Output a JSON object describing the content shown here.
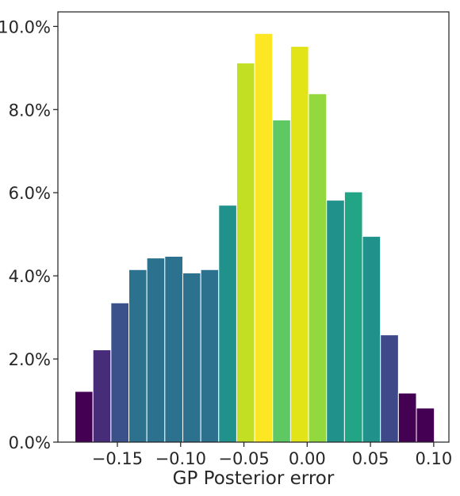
{
  "chart_data": {
    "type": "bar",
    "subtype": "histogram",
    "title": "",
    "xlabel": "GP Posterior error",
    "ylabel": "",
    "bin_width": 0.0142,
    "bin_start": -0.1835,
    "values": [
      1.22,
      2.22,
      3.35,
      4.15,
      4.43,
      4.47,
      4.07,
      4.15,
      5.7,
      9.12,
      9.83,
      7.75,
      9.52,
      8.38,
      5.82,
      6.02,
      4.95,
      2.58,
      1.18,
      0.82
    ],
    "value_unit": "%",
    "colors": [
      "#440154",
      "#472c7a",
      "#3b518b",
      "#2c718e",
      "#2c718e",
      "#2c718e",
      "#2c718e",
      "#2c718e",
      "#21918c",
      "#c2df23",
      "#fde725",
      "#5ec962",
      "#e3e418",
      "#94d840",
      "#21918c",
      "#21a585",
      "#21918c",
      "#3e4989",
      "#440154",
      "#440154"
    ],
    "xlim": [
      -0.197,
      0.112
    ],
    "ylim": [
      0,
      10.35
    ],
    "xticks": [
      -0.15,
      -0.1,
      -0.05,
      0.0,
      0.05,
      0.1
    ],
    "xtick_labels": [
      "−0.15",
      "−0.10",
      "−0.05",
      "0.00",
      "0.05",
      "0.10"
    ],
    "yticks": [
      0,
      2,
      4,
      6,
      8,
      10
    ],
    "ytick_labels": [
      "0.0%",
      "2.0%",
      "4.0%",
      "6.0%",
      "8.0%",
      "10.0%"
    ],
    "grid": false,
    "legend": "none"
  }
}
